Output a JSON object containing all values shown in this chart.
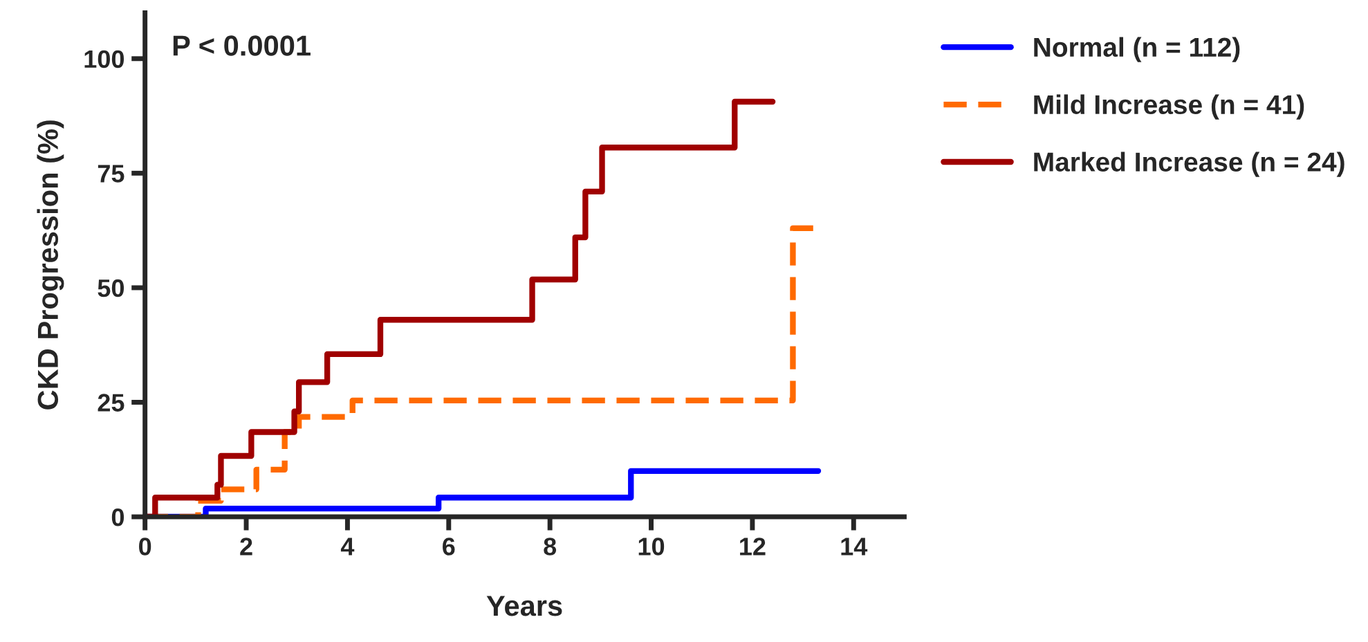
{
  "chart_data": {
    "type": "step",
    "xlabel": "Years",
    "ylabel": "CKD Progression (%)",
    "annotations": [
      "P < 0.0001"
    ],
    "series": [
      {
        "name": "Normal (n = 112)",
        "color": "#0000ff",
        "line_style": "solid",
        "x": [
          0,
          1.2,
          5.8,
          9.6,
          13.3
        ],
        "values": [
          0,
          1.8,
          4.2,
          10,
          10
        ]
      },
      {
        "name": "Mild Increase (n = 41)",
        "color": "#ff6a00",
        "line_style": "dashed",
        "x": [
          0,
          1.05,
          1.5,
          2.2,
          2.76,
          3.04,
          4.1,
          12.8,
          13.3
        ],
        "values": [
          0,
          3.5,
          6,
          10.3,
          18.5,
          21.8,
          25.4,
          63,
          63
        ]
      },
      {
        "name": "Marked Increase (n = 24)",
        "color": "#a00000",
        "line_style": "solid",
        "x": [
          0,
          0.2,
          1.43,
          1.5,
          2.1,
          2.95,
          3.04,
          3.6,
          4.65,
          7.65,
          8.5,
          8.7,
          9.03,
          11.65,
          12.4
        ],
        "values": [
          0,
          4.2,
          7,
          13.3,
          18.5,
          23,
          29.4,
          35.5,
          43,
          51.8,
          61,
          71,
          80.6,
          90.6,
          90.6
        ]
      }
    ],
    "xlim": [
      0,
      15
    ],
    "xticks": [
      0,
      2,
      4,
      6,
      8,
      10,
      12,
      14
    ],
    "ylim": [
      0,
      110
    ],
    "yticks": [
      0,
      25,
      50,
      75,
      100
    ],
    "grid": false,
    "legend": "right"
  }
}
